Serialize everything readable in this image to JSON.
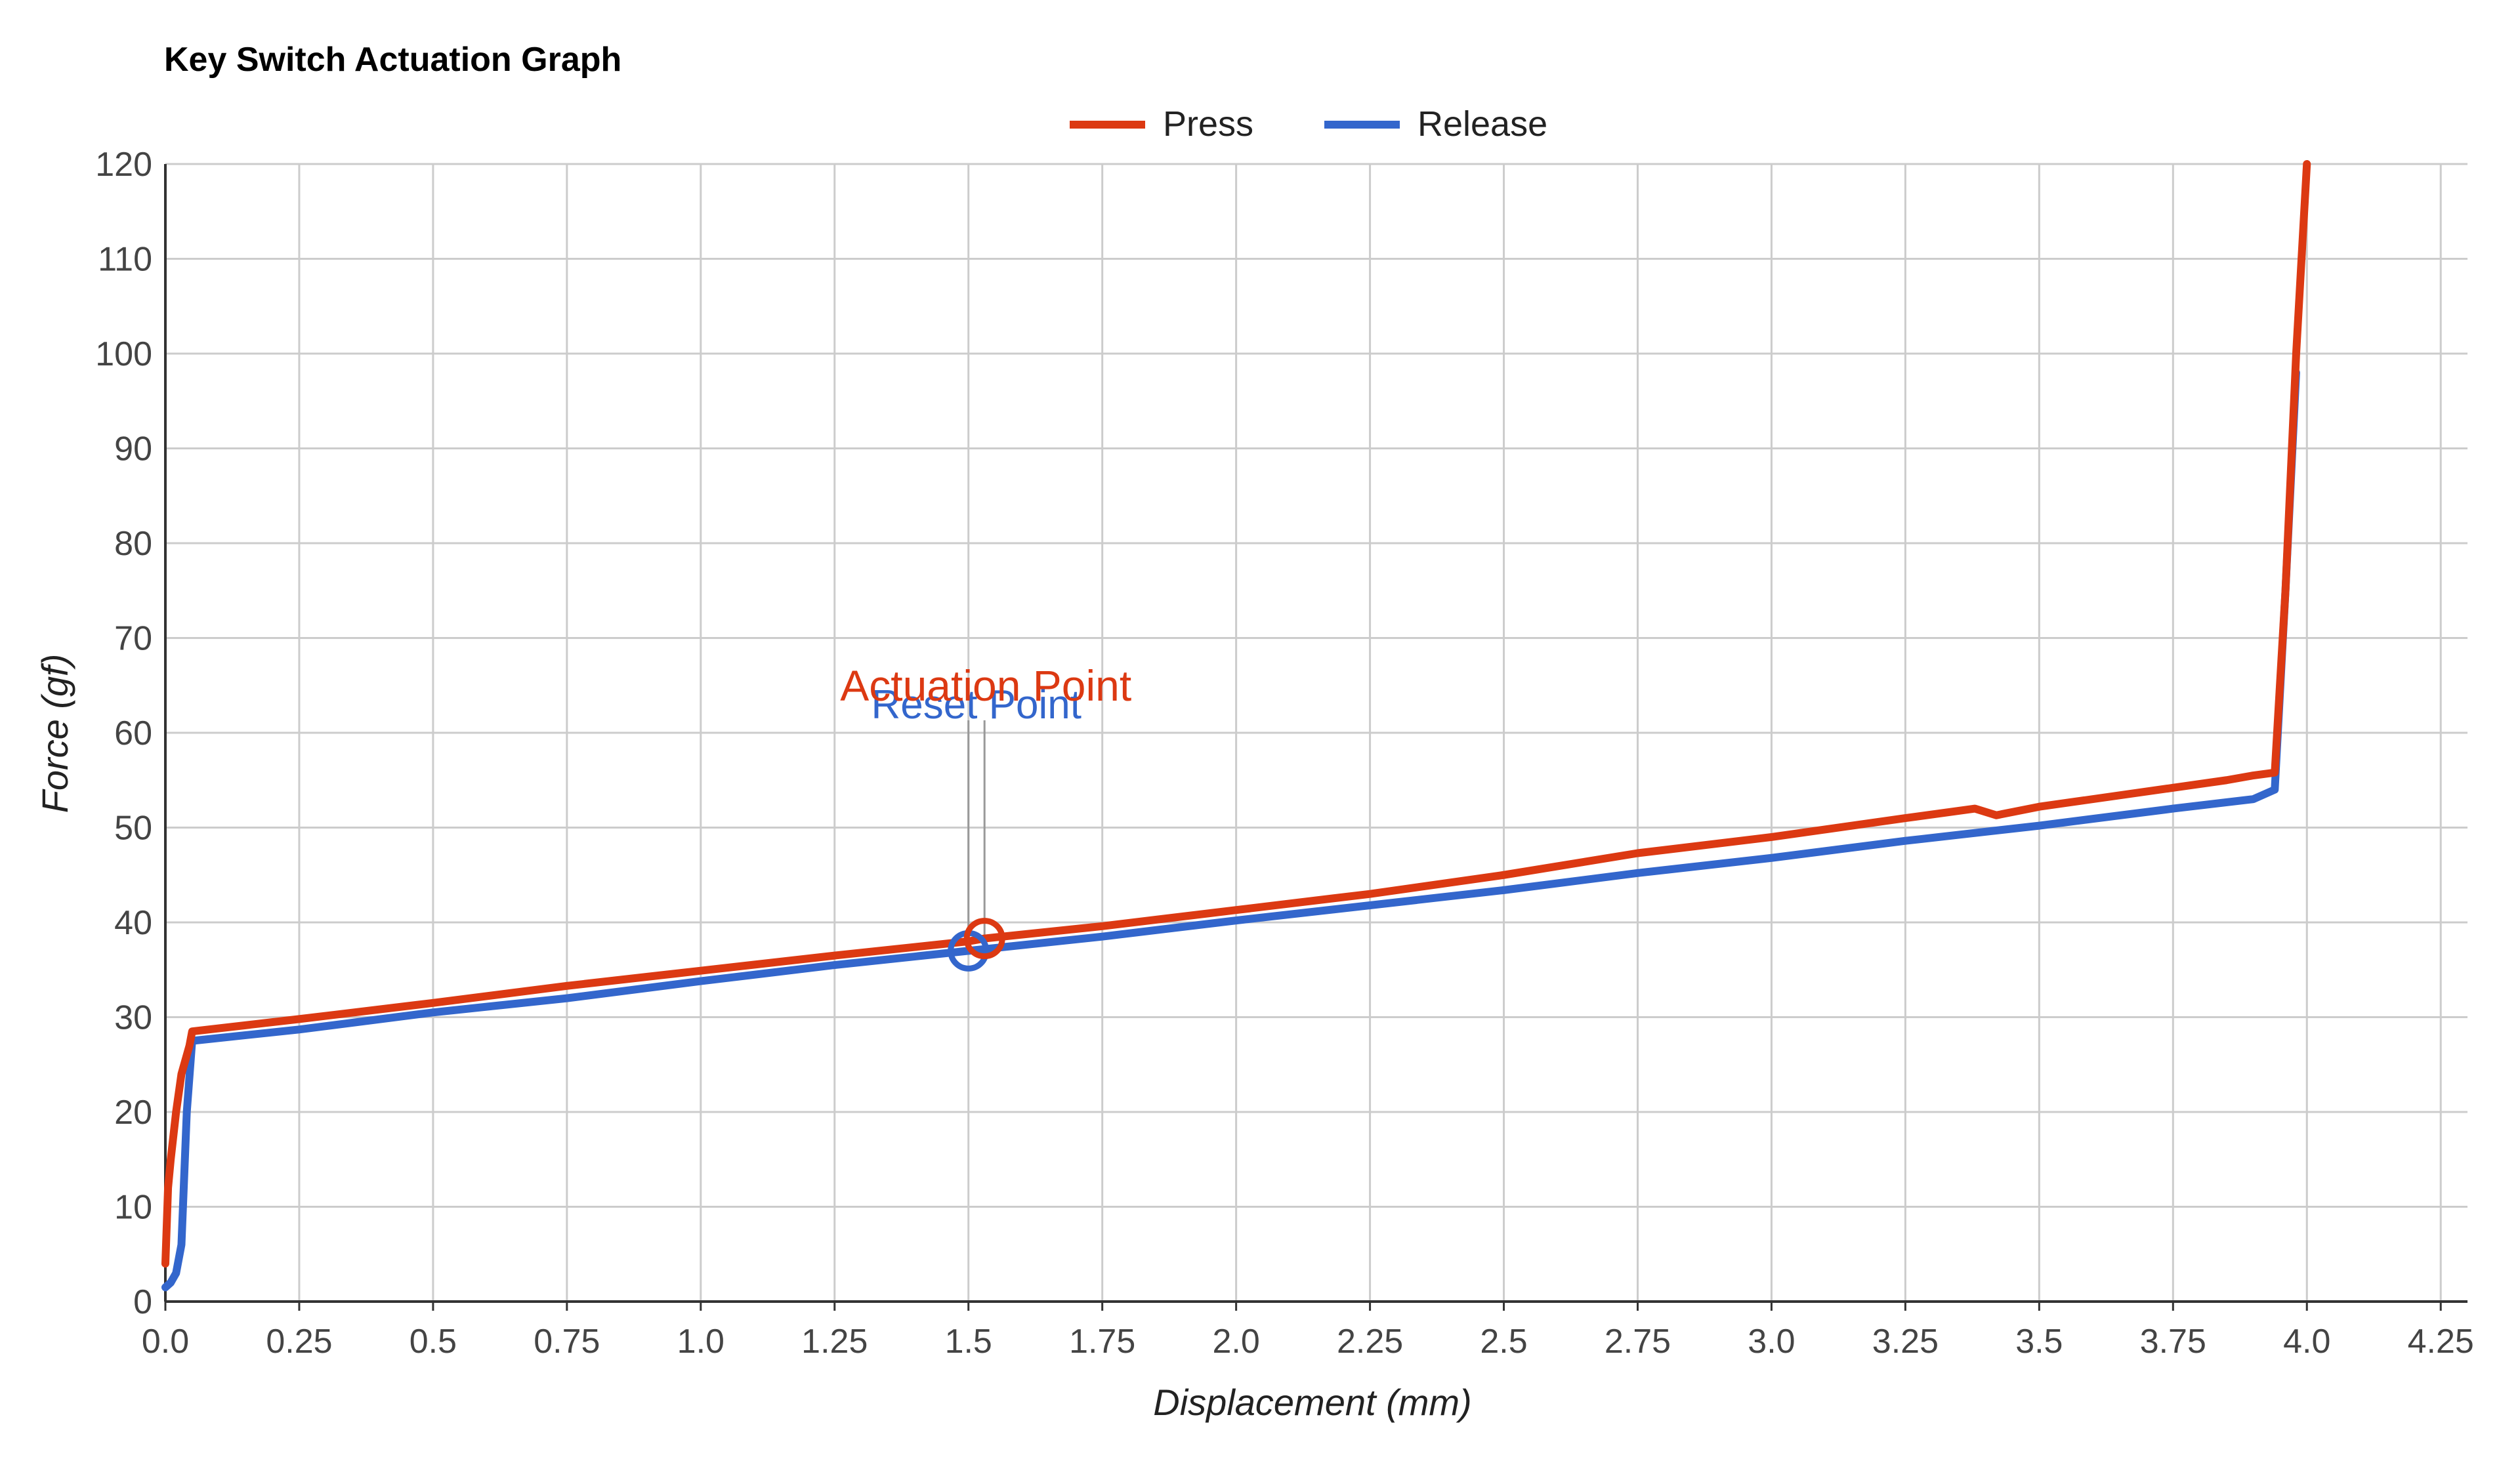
{
  "chart_data": {
    "type": "line",
    "title": "Key Switch Actuation Graph",
    "xlabel": "Displacement (mm)",
    "ylabel": "Force (gf)",
    "xlim": [
      0,
      4.3
    ],
    "ylim": [
      0,
      120
    ],
    "x_ticks": [
      0,
      0.25,
      0.5,
      0.75,
      1.0,
      1.25,
      1.5,
      1.75,
      2.0,
      2.25,
      2.5,
      2.75,
      3.0,
      3.25,
      3.5,
      3.75,
      4.0,
      4.25
    ],
    "x_tick_labels": [
      "0.0",
      "0.25",
      "0.5",
      "0.75",
      "1.0",
      "1.25",
      "1.5",
      "1.75",
      "2.0",
      "2.25",
      "2.5",
      "2.75",
      "3.0",
      "3.25",
      "3.5",
      "3.75",
      "4.0",
      "4.25"
    ],
    "y_ticks": [
      0,
      10,
      20,
      30,
      40,
      50,
      60,
      70,
      80,
      90,
      100,
      110,
      120
    ],
    "y_tick_labels": [
      "0",
      "10",
      "20",
      "30",
      "40",
      "50",
      "60",
      "70",
      "80",
      "90",
      "100",
      "110",
      "120"
    ],
    "grid": true,
    "legend_position": "top-center",
    "series": [
      {
        "name": "Press",
        "color": "#dc3912",
        "x": [
          0.0,
          0.005,
          0.01,
          0.02,
          0.03,
          0.045,
          0.05,
          0.25,
          0.5,
          0.75,
          1.0,
          1.25,
          1.4,
          1.5,
          1.53,
          1.75,
          2.0,
          2.25,
          2.5,
          2.75,
          3.0,
          3.25,
          3.38,
          3.42,
          3.5,
          3.75,
          3.85,
          3.9,
          3.94,
          3.96,
          3.98,
          4.0
        ],
        "y": [
          4,
          12,
          15,
          20,
          24,
          27,
          28.5,
          29.8,
          31.5,
          33.3,
          34.9,
          36.5,
          37.4,
          38,
          38.3,
          39.6,
          41.3,
          43,
          45,
          47.3,
          49,
          51,
          52,
          51.3,
          52.2,
          54.2,
          55,
          55.5,
          55.8,
          75,
          100,
          120
        ]
      },
      {
        "name": "Release",
        "color": "#3366cc",
        "x": [
          0.0,
          0.01,
          0.02,
          0.03,
          0.04,
          0.05,
          0.25,
          0.5,
          0.75,
          1.0,
          1.25,
          1.5,
          1.75,
          2.0,
          2.25,
          2.5,
          2.75,
          3.0,
          3.25,
          3.5,
          3.75,
          3.9,
          3.94,
          3.96,
          3.98
        ],
        "y": [
          1.5,
          2,
          3,
          6,
          20,
          27.5,
          28.7,
          30.5,
          32,
          33.8,
          35.5,
          37,
          38.5,
          40.2,
          41.8,
          43.4,
          45.2,
          46.8,
          48.6,
          50.2,
          52,
          53,
          54,
          75,
          98
        ]
      }
    ],
    "annotations": [
      {
        "label": "Actuation Point",
        "series": "Press",
        "x": 1.53,
        "y": 38.3,
        "color": "#dc3912"
      },
      {
        "label": "Reset Point",
        "series": "Release",
        "x": 1.5,
        "y": 37,
        "color": "#3366cc"
      }
    ]
  }
}
